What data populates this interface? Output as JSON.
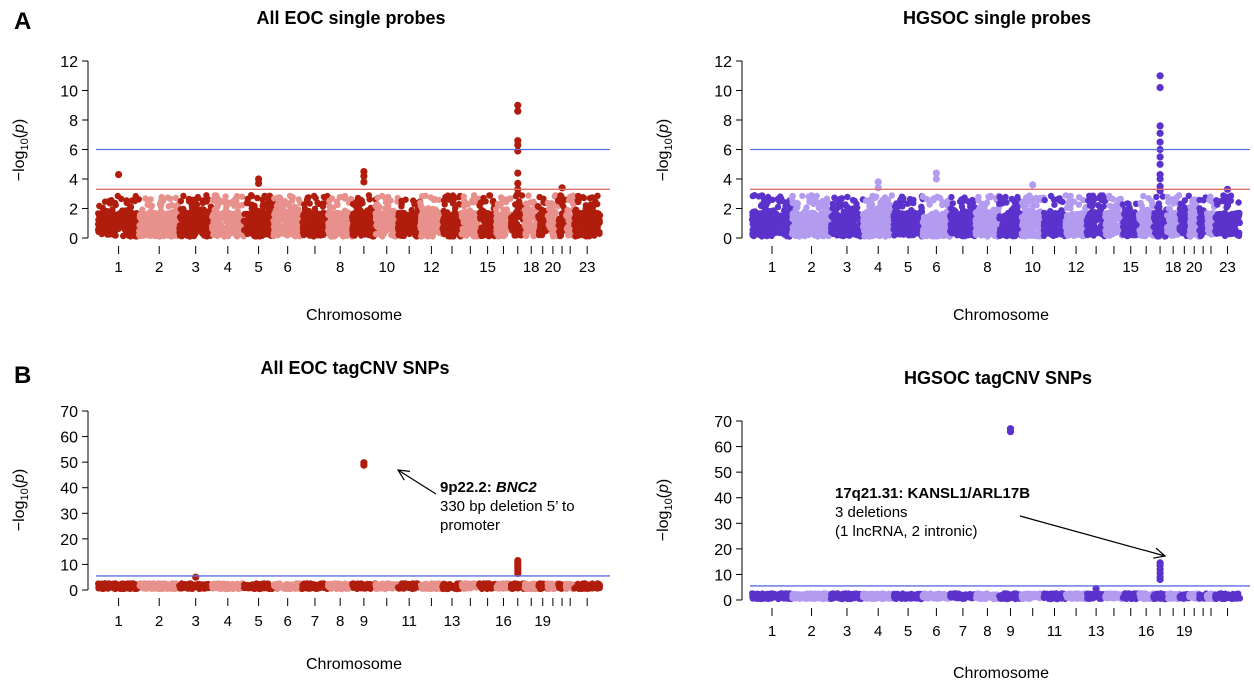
{
  "panel_labels": [
    "A",
    "B"
  ],
  "chart_data": [
    {
      "type": "scatter",
      "title": "All EOC single probes",
      "xlabel": "Chromosome",
      "ylabel": "−log10(p)",
      "ylim": [
        0,
        12
      ],
      "yticks": [
        0,
        2,
        4,
        6,
        8,
        10,
        12
      ],
      "xtick_labels": [
        "1",
        "2",
        "3",
        "4",
        "5",
        "6",
        "8",
        "10",
        "12",
        "15",
        "18",
        "20",
        "23"
      ],
      "thresholds": [
        6.0,
        3.3
      ],
      "threshold_colors": [
        "#5b6fe0",
        "#e0706a"
      ],
      "colors": [
        "#b11d0c",
        "#e8918c"
      ],
      "peaks": [
        {
          "chromosome": "1",
          "values": [
            4.3
          ]
        },
        {
          "chromosome": "5",
          "values": [
            4.0,
            3.7
          ]
        },
        {
          "chromosome": "9",
          "values": [
            4.5,
            4.2,
            3.8
          ]
        },
        {
          "chromosome": "17",
          "values": [
            9.0,
            8.6,
            6.6,
            6.3,
            5.9,
            4.4,
            3.7,
            3.3,
            3.0
          ]
        },
        {
          "chromosome": "21",
          "values": [
            3.4
          ]
        }
      ]
    },
    {
      "type": "scatter",
      "title": "HGSOC single probes",
      "xlabel": "Chromosome",
      "ylabel": "−log10(p)",
      "ylim": [
        0,
        12
      ],
      "yticks": [
        0,
        2,
        4,
        6,
        8,
        10,
        12
      ],
      "xtick_labels": [
        "1",
        "2",
        "3",
        "4",
        "5",
        "6",
        "8",
        "10",
        "12",
        "15",
        "18",
        "20",
        "23"
      ],
      "thresholds": [
        6.0,
        3.3
      ],
      "threshold_colors": [
        "#5b6fe0",
        "#e0706a"
      ],
      "colors": [
        "#5b32cc",
        "#b39bf0"
      ],
      "peaks": [
        {
          "chromosome": "4",
          "values": [
            3.8,
            3.4
          ]
        },
        {
          "chromosome": "6",
          "values": [
            4.4,
            4.0
          ]
        },
        {
          "chromosome": "10",
          "values": [
            3.6
          ]
        },
        {
          "chromosome": "17",
          "values": [
            11.0,
            10.2,
            7.6,
            7.1,
            6.5,
            6.0,
            5.5,
            5.0,
            4.3,
            4.0,
            3.5,
            3.2
          ]
        },
        {
          "chromosome": "23",
          "values": [
            3.3
          ]
        }
      ]
    },
    {
      "type": "scatter",
      "title": "All EOC tagCNV SNPs",
      "xlabel": "Chromosome",
      "ylabel": "−log10(p)",
      "ylim": [
        0,
        70
      ],
      "yticks": [
        0,
        10,
        20,
        30,
        40,
        50,
        60,
        70
      ],
      "xtick_labels": [
        "1",
        "2",
        "3",
        "4",
        "5",
        "6",
        "7",
        "8",
        "9",
        "11",
        "13",
        "16",
        "19"
      ],
      "thresholds": [
        5.5
      ],
      "threshold_colors": [
        "#5b6fe0"
      ],
      "colors": [
        "#b11d0c",
        "#e8918c"
      ],
      "peaks": [
        {
          "chromosome": "3",
          "values": [
            5.0
          ]
        },
        {
          "chromosome": "9",
          "values": [
            49.8,
            48.8
          ]
        },
        {
          "chromosome": "17",
          "values": [
            11.5,
            10.5,
            9.5,
            8.5,
            7.5,
            6.5
          ]
        }
      ],
      "annotation": {
        "title_prefix": "9p22.2: ",
        "title_gene": "BNC2",
        "lines": [
          "330 bp deletion 5’ to",
          "promoter"
        ]
      }
    },
    {
      "type": "scatter",
      "title": "HGSOC tagCNV SNPs",
      "xlabel": "Chromosome",
      "ylabel": "−log10(p)",
      "ylim": [
        0,
        70
      ],
      "yticks": [
        0,
        10,
        20,
        30,
        40,
        50,
        60,
        70
      ],
      "xtick_labels": [
        "1",
        "2",
        "3",
        "4",
        "5",
        "6",
        "7",
        "8",
        "9",
        "11",
        "13",
        "16",
        "19"
      ],
      "thresholds": [
        5.5
      ],
      "threshold_colors": [
        "#5b6fe0"
      ],
      "colors": [
        "#5b32cc",
        "#b39bf0"
      ],
      "peaks": [
        {
          "chromosome": "9",
          "values": [
            67.0,
            65.8
          ]
        },
        {
          "chromosome": "13",
          "values": [
            4.5
          ]
        },
        {
          "chromosome": "17",
          "values": [
            14.5,
            13.5,
            12.0,
            10.5,
            9.0,
            8.0
          ]
        }
      ],
      "annotation": {
        "title_prefix": "17q21.31: KANSL1/ARL17B",
        "title_gene": "",
        "lines": [
          "3 deletions",
          "(1 lncRNA, 2 intronic)"
        ]
      }
    }
  ]
}
